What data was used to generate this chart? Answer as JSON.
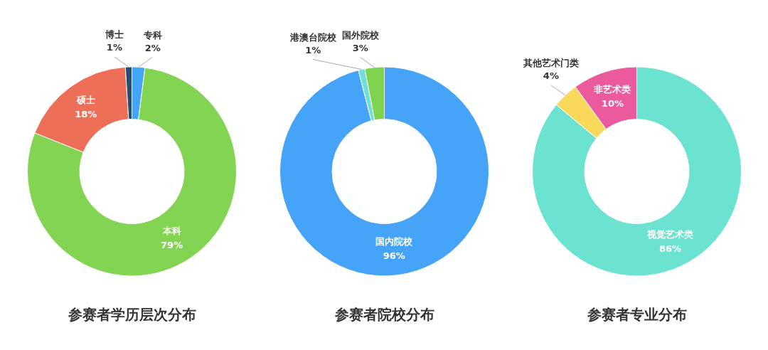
{
  "chart_data": [
    {
      "type": "donut",
      "title": "参赛者学历层次分布",
      "categories": [
        "专科",
        "本科",
        "硕士",
        "博士"
      ],
      "values": [
        2,
        79,
        18,
        1
      ],
      "value_labels": [
        "2%",
        "79%",
        "18%",
        "1%"
      ],
      "colors": [
        "#42a5f5",
        "#82d452",
        "#ee6f57",
        "#2b4a6f"
      ],
      "legend": false
    },
    {
      "type": "donut",
      "title": "参赛者院校分布",
      "categories": [
        "国内院校",
        "港澳台院校",
        "国外院校"
      ],
      "values": [
        96,
        1,
        3
      ],
      "value_labels": [
        "96%",
        "1%",
        "3%"
      ],
      "colors": [
        "#45a3f8",
        "#6fe0d8",
        "#7ed34f"
      ],
      "legend": false
    },
    {
      "type": "donut",
      "title": "参赛者专业分布",
      "categories": [
        "视觉艺术类",
        "其他艺术门类",
        "非艺术类"
      ],
      "values": [
        86,
        4,
        10
      ],
      "value_labels": [
        "86%",
        "4%",
        "10%"
      ],
      "colors": [
        "#6ce3d0",
        "#f9d85a",
        "#ec5a9e"
      ],
      "legend": false
    }
  ]
}
